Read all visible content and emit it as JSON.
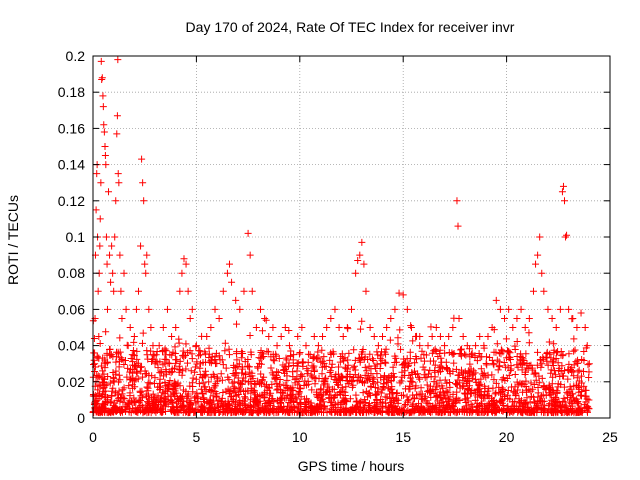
{
  "chart_data": {
    "type": "scatter",
    "title": "Day 170 of 2024, Rate Of TEC Index for receiver invr",
    "xlabel": "GPS time / hours",
    "ylabel": "ROTI / TECUs",
    "xlim": [
      0,
      25
    ],
    "ylim": [
      0,
      0.2
    ],
    "grid": true,
    "marker": "+",
    "color": "#ff0000",
    "xticks": [
      0,
      5,
      10,
      15,
      20,
      25
    ],
    "xtick_labels": [
      "0",
      "5",
      "10",
      "15",
      "20",
      "25"
    ],
    "yticks": [
      0,
      0.02,
      0.04,
      0.06,
      0.08,
      0.1,
      0.12,
      0.14,
      0.16,
      0.18,
      0.2
    ],
    "ytick_labels": [
      "0",
      "0.02",
      "0.04",
      "0.06",
      "0.08",
      "0.1",
      "0.12",
      "0.14",
      "0.16",
      "0.18",
      "0.2"
    ],
    "series": [
      {
        "name": "ROTI",
        "points": [
          [
            0.05,
            0.012
          ],
          [
            0.08,
            0.03
          ],
          [
            0.1,
            0.055
          ],
          [
            0.12,
            0.09
          ],
          [
            0.15,
            0.115
          ],
          [
            0.18,
            0.135
          ],
          [
            0.2,
            0.14
          ],
          [
            0.22,
            0.1
          ],
          [
            0.25,
            0.07
          ],
          [
            0.28,
            0.045
          ],
          [
            0.3,
            0.08
          ],
          [
            0.33,
            0.095
          ],
          [
            0.35,
            0.11
          ],
          [
            0.38,
            0.13
          ],
          [
            0.4,
            0.197
          ],
          [
            0.42,
            0.187
          ],
          [
            0.45,
            0.188
          ],
          [
            0.48,
            0.178
          ],
          [
            0.5,
            0.172
          ],
          [
            0.52,
            0.162
          ],
          [
            0.55,
            0.158
          ],
          [
            0.58,
            0.15
          ],
          [
            0.6,
            0.145
          ],
          [
            0.62,
            0.14
          ],
          [
            0.65,
            0.1
          ],
          [
            0.68,
            0.085
          ],
          [
            0.7,
            0.06
          ],
          [
            0.75,
            0.125
          ],
          [
            0.8,
            0.09
          ],
          [
            0.85,
            0.075
          ],
          [
            0.9,
            0.095
          ],
          [
            0.95,
            0.08
          ],
          [
            1.0,
            0.07
          ],
          [
            1.05,
            0.1
          ],
          [
            1.1,
            0.12
          ],
          [
            1.15,
            0.157
          ],
          [
            1.18,
            0.167
          ],
          [
            1.2,
            0.198
          ],
          [
            1.22,
            0.135
          ],
          [
            1.25,
            0.13
          ],
          [
            1.3,
            0.09
          ],
          [
            1.35,
            0.07
          ],
          [
            1.4,
            0.055
          ],
          [
            1.5,
            0.08
          ],
          [
            1.6,
            0.06
          ],
          [
            1.7,
            0.04
          ],
          [
            1.8,
            0.05
          ],
          [
            1.9,
            0.035
          ],
          [
            2.0,
            0.045
          ],
          [
            2.1,
            0.06
          ],
          [
            2.2,
            0.07
          ],
          [
            2.3,
            0.095
          ],
          [
            2.35,
            0.143
          ],
          [
            2.4,
            0.13
          ],
          [
            2.45,
            0.12
          ],
          [
            2.5,
            0.085
          ],
          [
            2.55,
            0.08
          ],
          [
            2.6,
            0.09
          ],
          [
            2.7,
            0.06
          ],
          [
            2.8,
            0.05
          ],
          [
            2.9,
            0.04
          ],
          [
            3.0,
            0.03
          ],
          [
            3.2,
            0.04
          ],
          [
            3.4,
            0.05
          ],
          [
            3.6,
            0.06
          ],
          [
            3.8,
            0.045
          ],
          [
            4.0,
            0.05
          ],
          [
            4.2,
            0.07
          ],
          [
            4.3,
            0.08
          ],
          [
            4.4,
            0.088
          ],
          [
            4.5,
            0.085
          ],
          [
            4.6,
            0.07
          ],
          [
            4.7,
            0.055
          ],
          [
            4.8,
            0.06
          ],
          [
            5.0,
            0.04
          ],
          [
            5.2,
            0.03
          ],
          [
            5.5,
            0.045
          ],
          [
            5.7,
            0.05
          ],
          [
            5.9,
            0.06
          ],
          [
            6.1,
            0.055
          ],
          [
            6.3,
            0.07
          ],
          [
            6.5,
            0.08
          ],
          [
            6.6,
            0.085
          ],
          [
            6.7,
            0.075
          ],
          [
            6.9,
            0.065
          ],
          [
            7.1,
            0.06
          ],
          [
            7.3,
            0.07
          ],
          [
            7.5,
            0.102
          ],
          [
            7.6,
            0.09
          ],
          [
            7.7,
            0.07
          ],
          [
            7.9,
            0.05
          ],
          [
            8.1,
            0.06
          ],
          [
            8.3,
            0.055
          ],
          [
            8.5,
            0.045
          ],
          [
            8.7,
            0.05
          ],
          [
            8.9,
            0.04
          ],
          [
            9.1,
            0.045
          ],
          [
            9.3,
            0.05
          ],
          [
            9.5,
            0.04
          ],
          [
            9.7,
            0.035
          ],
          [
            9.9,
            0.045
          ],
          [
            10.1,
            0.05
          ],
          [
            10.3,
            0.04
          ],
          [
            10.5,
            0.035
          ],
          [
            10.7,
            0.045
          ],
          [
            10.9,
            0.04
          ],
          [
            11.1,
            0.045
          ],
          [
            11.3,
            0.05
          ],
          [
            11.5,
            0.055
          ],
          [
            11.7,
            0.06
          ],
          [
            11.9,
            0.05
          ],
          [
            12.1,
            0.045
          ],
          [
            12.3,
            0.05
          ],
          [
            12.5,
            0.06
          ],
          [
            12.7,
            0.08
          ],
          [
            12.8,
            0.087
          ],
          [
            12.9,
            0.09
          ],
          [
            13.0,
            0.097
          ],
          [
            13.1,
            0.085
          ],
          [
            13.2,
            0.07
          ],
          [
            13.4,
            0.05
          ],
          [
            13.6,
            0.045
          ],
          [
            13.8,
            0.04
          ],
          [
            14.0,
            0.045
          ],
          [
            14.2,
            0.05
          ],
          [
            14.4,
            0.055
          ],
          [
            14.6,
            0.06
          ],
          [
            14.8,
            0.069
          ],
          [
            15.0,
            0.068
          ],
          [
            15.2,
            0.06
          ],
          [
            15.4,
            0.05
          ],
          [
            15.6,
            0.045
          ],
          [
            15.8,
            0.04
          ],
          [
            16.0,
            0.035
          ],
          [
            16.2,
            0.04
          ],
          [
            16.4,
            0.045
          ],
          [
            16.6,
            0.05
          ],
          [
            16.8,
            0.045
          ],
          [
            17.0,
            0.04
          ],
          [
            17.2,
            0.045
          ],
          [
            17.4,
            0.05
          ],
          [
            17.6,
            0.12
          ],
          [
            17.65,
            0.106
          ],
          [
            17.7,
            0.055
          ],
          [
            17.9,
            0.045
          ],
          [
            18.1,
            0.04
          ],
          [
            18.3,
            0.035
          ],
          [
            18.5,
            0.04
          ],
          [
            18.7,
            0.045
          ],
          [
            18.9,
            0.04
          ],
          [
            19.1,
            0.045
          ],
          [
            19.3,
            0.05
          ],
          [
            19.5,
            0.065
          ],
          [
            19.7,
            0.06
          ],
          [
            19.9,
            0.055
          ],
          [
            20.1,
            0.06
          ],
          [
            20.3,
            0.05
          ],
          [
            20.5,
            0.055
          ],
          [
            20.7,
            0.06
          ],
          [
            20.9,
            0.05
          ],
          [
            21.1,
            0.055
          ],
          [
            21.3,
            0.07
          ],
          [
            21.4,
            0.085
          ],
          [
            21.5,
            0.09
          ],
          [
            21.6,
            0.1
          ],
          [
            21.7,
            0.08
          ],
          [
            21.8,
            0.07
          ],
          [
            22.0,
            0.06
          ],
          [
            22.2,
            0.055
          ],
          [
            22.4,
            0.05
          ],
          [
            22.6,
            0.06
          ],
          [
            22.7,
            0.125
          ],
          [
            22.75,
            0.128
          ],
          [
            22.8,
            0.12
          ],
          [
            22.85,
            0.1
          ],
          [
            22.9,
            0.101
          ],
          [
            23.0,
            0.06
          ],
          [
            23.2,
            0.055
          ],
          [
            23.4,
            0.05
          ],
          [
            23.6,
            0.058
          ],
          [
            23.8,
            0.05
          ],
          [
            23.9,
            0.04
          ]
        ]
      }
    ]
  }
}
